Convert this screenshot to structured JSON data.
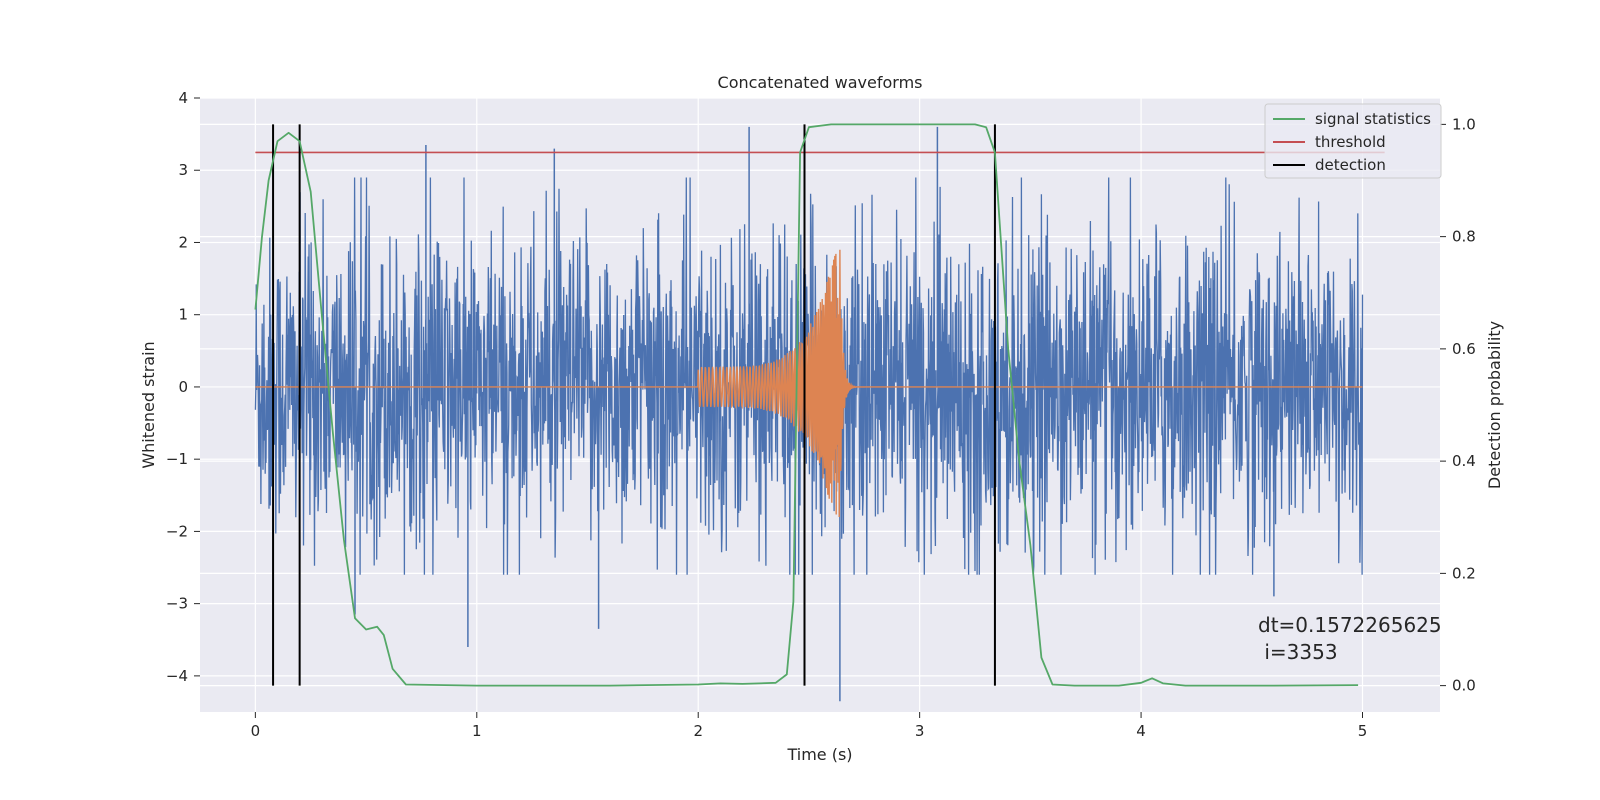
{
  "chart_data": {
    "type": "line",
    "title": "Concatenated waveforms",
    "xlabel": "Time (s)",
    "ylabel": "Whitened strain",
    "y2label": "Detection probability",
    "xlim": [
      -0.25,
      5.35
    ],
    "ylim": [
      -4.5,
      4.0
    ],
    "y2lim": [
      -0.047,
      1.047
    ],
    "xticks": [
      0,
      1,
      2,
      3,
      4,
      5
    ],
    "yticks": [
      -4,
      -3,
      -2,
      -1,
      0,
      1,
      2,
      3,
      4
    ],
    "y2ticks": [
      0.0,
      0.2,
      0.4,
      0.6,
      0.8,
      1.0
    ],
    "xtick_labels": [
      "0",
      "1",
      "2",
      "3",
      "4",
      "5"
    ],
    "ytick_labels": [
      "−4",
      "−3",
      "−2",
      "−1",
      "0",
      "1",
      "2",
      "3",
      "4"
    ],
    "y2tick_labels": [
      "0.0",
      "0.2",
      "0.4",
      "0.6",
      "0.8",
      "1.0"
    ],
    "grid": true,
    "legend_position": "top-right",
    "series": [
      {
        "name": "",
        "axis": "left",
        "color": "#4c72b0",
        "kind": "noise",
        "x_range": [
          0,
          5
        ],
        "typical_amplitude": 1.2,
        "sample_peaks": [
          {
            "x": 0.77,
            "y": 3.35
          },
          {
            "x": 1.35,
            "y": 3.3
          },
          {
            "x": 2.23,
            "y": 3.6
          },
          {
            "x": 3.08,
            "y": 3.6
          },
          {
            "x": 0.96,
            "y": -3.6
          },
          {
            "x": 1.55,
            "y": -3.35
          },
          {
            "x": 2.64,
            "y": -4.35
          },
          {
            "x": 0.45,
            "y": -3.15
          },
          {
            "x": 4.6,
            "y": -2.9
          }
        ]
      },
      {
        "name": "",
        "axis": "left",
        "color": "#dd8452",
        "kind": "chirp",
        "x_range": [
          0,
          5
        ],
        "chirp_start": 2.0,
        "merger_time": 2.64,
        "peak_value": 2.25,
        "min_value": -1.8,
        "ringdown_end": 3.0
      },
      {
        "name": "signal statistics",
        "axis": "right",
        "color": "#55a868",
        "points": [
          [
            0.0,
            0.67
          ],
          [
            0.03,
            0.8
          ],
          [
            0.06,
            0.9
          ],
          [
            0.1,
            0.97
          ],
          [
            0.15,
            0.985
          ],
          [
            0.2,
            0.97
          ],
          [
            0.25,
            0.88
          ],
          [
            0.3,
            0.66
          ],
          [
            0.35,
            0.45
          ],
          [
            0.4,
            0.26
          ],
          [
            0.45,
            0.12
          ],
          [
            0.5,
            0.1
          ],
          [
            0.55,
            0.105
          ],
          [
            0.58,
            0.09
          ],
          [
            0.62,
            0.03
          ],
          [
            0.68,
            0.002
          ],
          [
            1.0,
            0.0
          ],
          [
            1.6,
            0.0
          ],
          [
            2.0,
            0.002
          ],
          [
            2.1,
            0.004
          ],
          [
            2.2,
            0.003
          ],
          [
            2.35,
            0.005
          ],
          [
            2.4,
            0.02
          ],
          [
            2.43,
            0.15
          ],
          [
            2.46,
            0.95
          ],
          [
            2.5,
            0.995
          ],
          [
            2.6,
            1.0
          ],
          [
            3.0,
            1.0
          ],
          [
            3.25,
            1.0
          ],
          [
            3.3,
            0.995
          ],
          [
            3.34,
            0.95
          ],
          [
            3.4,
            0.6
          ],
          [
            3.45,
            0.4
          ],
          [
            3.5,
            0.25
          ],
          [
            3.55,
            0.05
          ],
          [
            3.6,
            0.002
          ],
          [
            3.7,
            0.0
          ],
          [
            3.9,
            0.0
          ],
          [
            4.0,
            0.005
          ],
          [
            4.05,
            0.013
          ],
          [
            4.1,
            0.004
          ],
          [
            4.2,
            0.0
          ],
          [
            4.6,
            0.0
          ],
          [
            4.98,
            0.001
          ]
        ]
      },
      {
        "name": "threshold",
        "axis": "right",
        "color": "#c44e52",
        "value": 0.95,
        "x_range": [
          0,
          5.1
        ]
      },
      {
        "name": "detection",
        "axis": "right",
        "color": "#000000",
        "x_values": [
          0.08,
          0.2,
          2.48,
          3.34
        ],
        "y_range": [
          0,
          1.0
        ]
      }
    ],
    "annotation": {
      "line1": "dt=0.1572265625",
      "line2": " i=3353"
    }
  }
}
